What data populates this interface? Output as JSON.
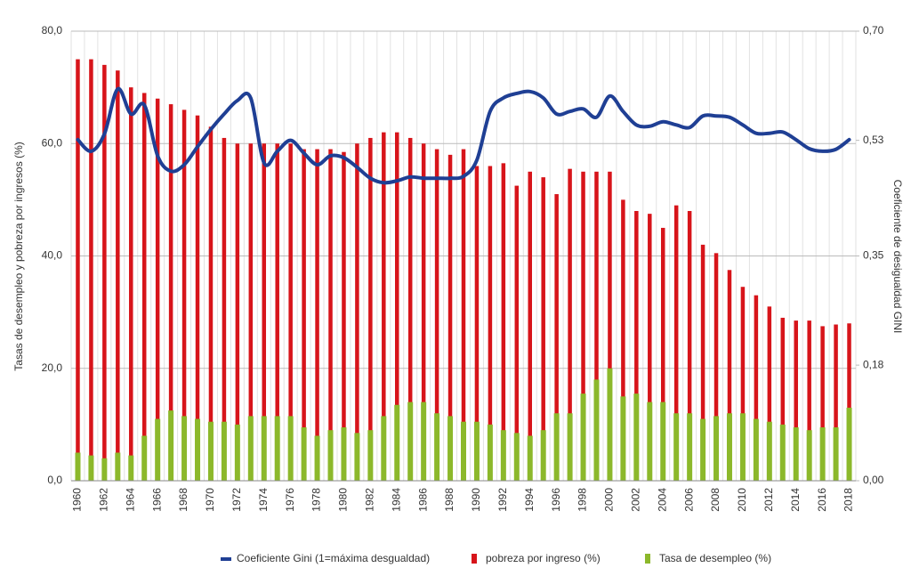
{
  "chart_data": {
    "type": "bar-line",
    "y_label": "Tasas de desempleo y pobreza por ingresos (%)",
    "y2_label": "Coeficiente de desigualdad GINI",
    "categories": [
      "1960",
      null,
      "1962",
      null,
      "1964",
      null,
      "1966",
      null,
      "1968",
      null,
      "1970",
      null,
      "1972",
      null,
      "1974",
      null,
      "1976",
      null,
      "1978",
      null,
      "1980",
      null,
      "1982",
      null,
      "1984",
      null,
      "1986",
      null,
      "1988",
      null,
      "1990",
      null,
      "1992",
      null,
      "1994",
      null,
      "1996",
      null,
      "1998",
      null,
      "2000",
      null,
      "2002",
      null,
      "2004",
      null,
      "2006",
      null,
      "2008",
      null,
      "2010",
      null,
      "2012",
      null,
      "2014",
      null,
      "2016",
      null,
      "2018"
    ],
    "ylim": [
      0,
      80
    ],
    "yticks": [
      {
        "value": 0,
        "label": "0,0"
      },
      {
        "value": 20,
        "label": "20,0"
      },
      {
        "value": 40,
        "label": "40,0"
      },
      {
        "value": 60,
        "label": "60,0"
      },
      {
        "value": 80,
        "label": "80,0"
      }
    ],
    "y2lim": [
      0,
      0.7
    ],
    "y2ticks": [
      {
        "value": 0,
        "label": "0,00"
      },
      {
        "value": 0.18,
        "label": "0,18"
      },
      {
        "value": 0.35,
        "label": "0,35"
      },
      {
        "value": 0.53,
        "label": "0,53"
      },
      {
        "value": 0.7,
        "label": "0,70"
      }
    ],
    "grid": true,
    "legend": "bottom",
    "series": [
      {
        "name": "Coeficiente Gini (1=máxima desgualdad)",
        "kind": "line",
        "axis": "y2",
        "color": "#1f3f94",
        "values": [
          0.531,
          0.513,
          0.54,
          0.61,
          0.571,
          0.585,
          0.506,
          0.482,
          0.492,
          0.52,
          0.547,
          0.571,
          0.592,
          0.596,
          0.495,
          0.513,
          0.53,
          0.51,
          0.492,
          0.506,
          0.503,
          0.488,
          0.471,
          0.464,
          0.467,
          0.473,
          0.471,
          0.471,
          0.471,
          0.474,
          0.499,
          0.575,
          0.596,
          0.603,
          0.606,
          0.596,
          0.571,
          0.575,
          0.579,
          0.566,
          0.599,
          0.575,
          0.554,
          0.552,
          0.559,
          0.554,
          0.55,
          0.568,
          0.568,
          0.566,
          0.554,
          0.541,
          0.541,
          0.543,
          0.531,
          0.517,
          0.513,
          0.516,
          0.531
        ]
      },
      {
        "name": "pobreza por ingreso (%)",
        "kind": "bar",
        "color": "#d7141a",
        "values": [
          75,
          75,
          74,
          73,
          70,
          69,
          68,
          67,
          66,
          65,
          63,
          61,
          60,
          60,
          60,
          60,
          60,
          59,
          59,
          59,
          58.5,
          60,
          61,
          62,
          62,
          61,
          60,
          59,
          58,
          59,
          56,
          56,
          56.5,
          52.5,
          55,
          54,
          51,
          55.5,
          55,
          55,
          55,
          50,
          48,
          47.5,
          45,
          49,
          48,
          42,
          40.5,
          37.5,
          34.5,
          33,
          31,
          29,
          28.5,
          28.5,
          27.5,
          27.8,
          28
        ]
      },
      {
        "name": "Tasa de desempleo (%)",
        "kind": "bar",
        "color": "#8cb82b",
        "values": [
          5,
          4.5,
          4,
          5,
          4.5,
          8,
          11,
          12.5,
          11.5,
          11,
          10.5,
          10.5,
          10,
          11.5,
          11.5,
          11.5,
          11.5,
          9.5,
          8,
          9,
          9.5,
          8.5,
          9,
          11.5,
          13.5,
          14,
          14,
          12,
          11.5,
          10.5,
          10.5,
          10,
          9,
          8.5,
          8,
          9,
          12,
          12,
          15.5,
          18,
          20,
          15,
          15.5,
          14,
          14,
          12,
          12,
          11,
          11.5,
          12,
          12,
          11,
          10.5,
          10,
          9.5,
          9,
          9.5,
          9.5,
          13
        ]
      }
    ]
  }
}
